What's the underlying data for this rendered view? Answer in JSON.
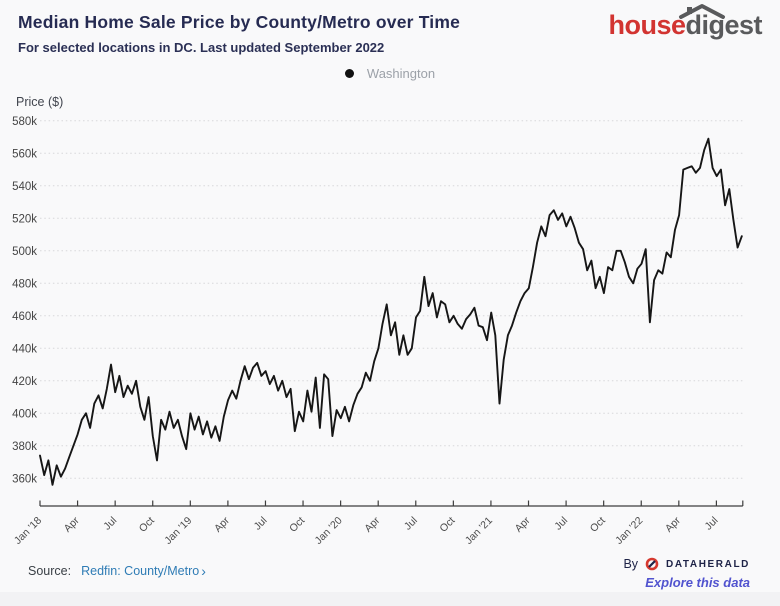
{
  "header": {
    "title": "Median Home Sale Price by County/Metro over Time",
    "subtitle": "For selected locations in DC. Last updated September 2022",
    "logo": {
      "part1": "house",
      "part2": "digest",
      "color_house": "#d23431",
      "color_digest": "#595a5c"
    }
  },
  "legend": {
    "series_label": "Washington",
    "marker_color": "#111111"
  },
  "chart_data": {
    "type": "line",
    "title": "Median Home Sale Price by County/Metro over Time",
    "series_name": "Washington",
    "ylabel": "Price ($)",
    "unit": "USD thousands",
    "frequency": "weekly (approx., ~10-day steps)",
    "x_start": "Jan 2018",
    "x_end": "Sep 2022",
    "grid": "horizontal dotted",
    "legend_position": "top-center",
    "line_color": "#161616",
    "ylim": [
      352,
      585
    ],
    "y_tick_values": [
      580,
      560,
      540,
      520,
      500,
      480,
      460,
      440,
      420,
      400,
      380,
      360
    ],
    "y_ticks": [
      "580k",
      "560k",
      "540k",
      "520k",
      "500k",
      "480k",
      "460k",
      "440k",
      "420k",
      "400k",
      "380k",
      "360k"
    ],
    "x_ticks": [
      "Jan '18",
      "Apr",
      "Jul",
      "Oct",
      "Jan '19",
      "Apr",
      "Jul",
      "Oct",
      "Jan '20",
      "Apr",
      "Jul",
      "Oct",
      "Jan '21",
      "Apr",
      "Jul",
      "Oct",
      "Jan '22",
      "Apr",
      "Jul"
    ],
    "values": [
      374,
      362,
      371,
      356,
      368,
      361,
      366,
      373,
      380,
      387,
      396,
      400,
      391,
      406,
      411,
      403,
      415,
      430,
      413,
      423,
      410,
      417,
      412,
      420,
      404,
      396,
      410,
      386,
      371,
      396,
      390,
      401,
      391,
      396,
      386,
      378,
      400,
      390,
      398,
      387,
      395,
      385,
      392,
      383,
      398,
      408,
      414,
      409,
      420,
      429,
      421,
      428,
      431,
      423,
      426,
      418,
      423,
      414,
      420,
      410,
      415,
      389,
      401,
      395,
      414,
      401,
      422,
      391,
      424,
      421,
      386,
      402,
      397,
      404,
      395,
      405,
      412,
      416,
      425,
      420,
      432,
      440,
      455,
      467,
      448,
      456,
      436,
      448,
      436,
      440,
      459,
      463,
      484,
      466,
      474,
      459,
      469,
      467,
      456,
      460,
      455,
      452,
      458,
      461,
      465,
      454,
      453,
      445,
      462,
      448,
      406,
      433,
      448,
      454,
      462,
      469,
      474,
      477,
      490,
      505,
      515,
      509,
      522,
      525,
      519,
      523,
      515,
      521,
      514,
      505,
      501,
      488,
      494,
      477,
      484,
      474,
      490,
      488,
      500,
      500,
      493,
      484,
      480,
      489,
      492,
      501,
      456,
      482,
      488,
      486,
      499,
      496,
      513,
      522,
      550,
      551,
      552,
      548,
      551,
      562,
      569,
      551,
      546,
      550,
      528,
      538,
      519,
      502,
      509
    ]
  },
  "footer": {
    "source_label": "Source:",
    "source_link": "Redfin: County/Metro",
    "source_chevron": "›",
    "by_label": "By",
    "brand": "DATAHERALD",
    "explore_link": "Explore this data"
  }
}
